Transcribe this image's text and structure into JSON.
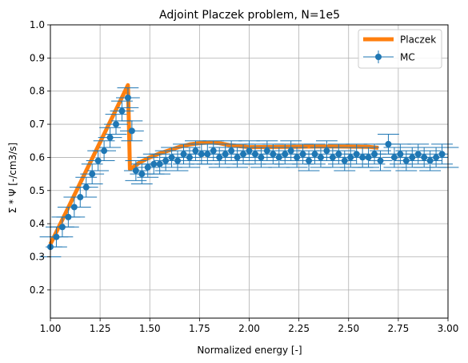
{
  "chart_data": {
    "type": "scatter",
    "title": "Adjoint Placzek problem, N=1e5",
    "xlabel": "Normalized energy [-]",
    "ylabel": "Σ * Ψ [-/cm3/s]",
    "xlim": [
      1.0,
      3.0
    ],
    "ylim": [
      0.115,
      1.0
    ],
    "xticks": [
      "1.00",
      "1.25",
      "1.50",
      "1.75",
      "2.00",
      "2.25",
      "2.50",
      "2.75",
      "3.00"
    ],
    "yticks": [
      "0.2",
      "0.3",
      "0.4",
      "0.5",
      "0.6",
      "0.7",
      "0.8",
      "0.9",
      "1.0"
    ],
    "grid": true,
    "legend_position": "top-right",
    "series": [
      {
        "name": "Placzek",
        "kind": "line",
        "color": "#ff7f0e",
        "x": [
          1.0,
          1.39,
          1.395,
          1.4,
          1.42,
          1.45,
          1.5,
          1.55,
          1.6,
          1.65,
          1.7,
          1.75,
          1.8,
          1.85,
          1.9,
          2.0,
          2.2,
          2.4,
          2.6,
          2.65
        ],
        "y": [
          0.338,
          0.818,
          0.7,
          0.565,
          0.572,
          0.585,
          0.6,
          0.612,
          0.622,
          0.632,
          0.639,
          0.643,
          0.645,
          0.643,
          0.637,
          0.631,
          0.632,
          0.633,
          0.632,
          0.629
        ]
      },
      {
        "name": "MC",
        "kind": "errorbar",
        "color": "#1f77b4",
        "xerr": 0.06,
        "yerr": 0.03,
        "x": [
          1.0,
          1.03,
          1.06,
          1.09,
          1.12,
          1.15,
          1.18,
          1.21,
          1.24,
          1.27,
          1.3,
          1.33,
          1.36,
          1.39,
          1.41,
          1.43,
          1.46,
          1.49,
          1.52,
          1.55,
          1.58,
          1.61,
          1.64,
          1.67,
          1.7,
          1.73,
          1.76,
          1.79,
          1.82,
          1.85,
          1.88,
          1.91,
          1.94,
          1.97,
          2.0,
          2.03,
          2.06,
          2.09,
          2.12,
          2.15,
          2.18,
          2.21,
          2.24,
          2.27,
          2.3,
          2.33,
          2.36,
          2.39,
          2.42,
          2.45,
          2.48,
          2.51,
          2.54,
          2.57,
          2.6,
          2.63,
          2.66,
          2.7,
          2.73,
          2.76,
          2.79,
          2.82,
          2.85,
          2.88,
          2.91,
          2.94,
          2.97,
          3.0
        ],
        "y": [
          0.33,
          0.36,
          0.39,
          0.42,
          0.45,
          0.48,
          0.51,
          0.55,
          0.59,
          0.62,
          0.66,
          0.7,
          0.74,
          0.78,
          0.68,
          0.56,
          0.55,
          0.57,
          0.58,
          0.58,
          0.59,
          0.6,
          0.59,
          0.61,
          0.6,
          0.62,
          0.61,
          0.61,
          0.62,
          0.6,
          0.61,
          0.62,
          0.6,
          0.61,
          0.62,
          0.61,
          0.6,
          0.62,
          0.61,
          0.6,
          0.61,
          0.62,
          0.6,
          0.61,
          0.59,
          0.61,
          0.6,
          0.62,
          0.6,
          0.61,
          0.59,
          0.6,
          0.61,
          0.6,
          0.6,
          0.61,
          0.59,
          0.64,
          0.6,
          0.61,
          0.59,
          0.6,
          0.61,
          0.6,
          0.59,
          0.6,
          0.61,
          0.6
        ]
      }
    ]
  }
}
